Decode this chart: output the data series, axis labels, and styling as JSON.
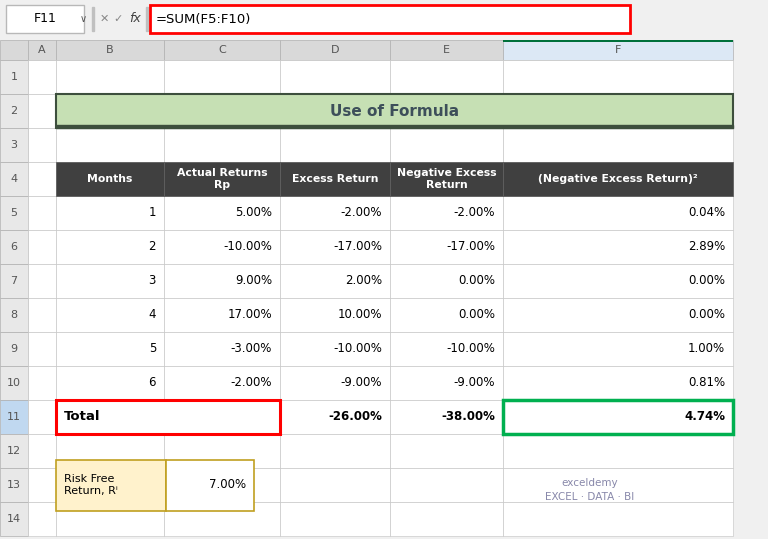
{
  "title": "Use of Formula",
  "title_bg": "#c6e0b4",
  "title_border": "#3d4f3d",
  "title_color": "#3d4f5a",
  "formula_bar_text": "=SUM(F5:F10)",
  "cell_ref": "F11",
  "header_bg": "#404040",
  "header_fg": "#ffffff",
  "col_headers": [
    "Months",
    "Actual Returns\nRp",
    "Excess Return",
    "Negative Excess\nReturn",
    "(Negative Excess Return)²"
  ],
  "data_rows": [
    [
      "1",
      "5.00%",
      "-2.00%",
      "-2.00%",
      "0.04%"
    ],
    [
      "2",
      "-10.00%",
      "-17.00%",
      "-17.00%",
      "2.89%"
    ],
    [
      "3",
      "9.00%",
      "2.00%",
      "0.00%",
      "0.00%"
    ],
    [
      "4",
      "17.00%",
      "10.00%",
      "0.00%",
      "0.00%"
    ],
    [
      "5",
      "-3.00%",
      "-10.00%",
      "-10.00%",
      "1.00%"
    ],
    [
      "6",
      "-2.00%",
      "-9.00%",
      "-9.00%",
      "0.81%"
    ]
  ],
  "total_row": [
    "Total",
    "",
    "-26.00%",
    "-38.00%",
    "4.74%"
  ],
  "risk_free_label": "Risk Free\nReturn, Rf",
  "risk_free_value": "7.00%",
  "grid_color": "#c0c0c0",
  "total_red_border": "#ff0000",
  "green_border": "#00b050",
  "risk_free_bg": "#fff2cc",
  "risk_free_border": "#c0a020",
  "excel_col_header_bg": "#d9d9d9",
  "excel_col_header_fg": "#555555",
  "col_F_header_bg": "#b8cce4",
  "formula_bar_border": "#ff0000",
  "fig_bg": "#f0f0f0",
  "white": "#ffffff",
  "row_num_bg": "#e8e8e8",
  "row_num_selected": "#c0d8f0",
  "col_F_selected": "#dce8f5"
}
